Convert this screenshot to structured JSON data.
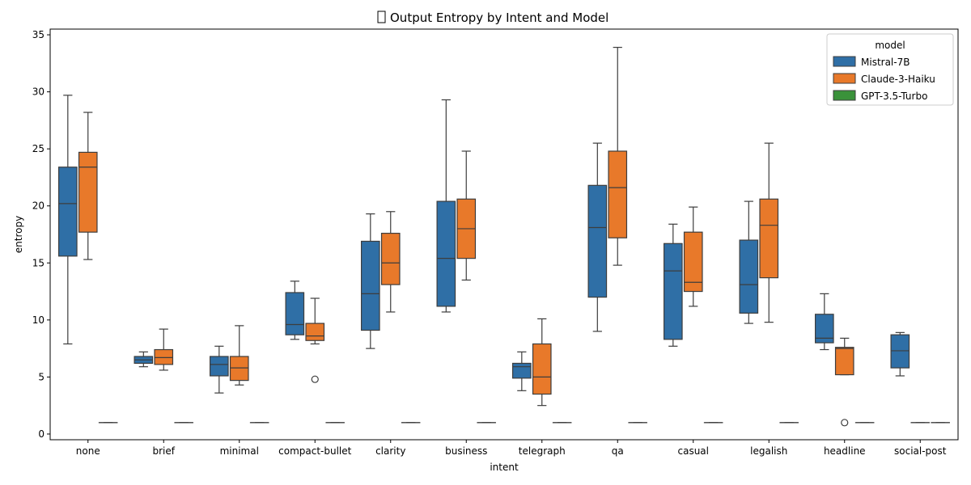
{
  "chart_data": {
    "type": "box",
    "title": "Output Entropy by Intent and Model",
    "title_icon": "tofu-glyph",
    "xlabel": "intent",
    "ylabel": "entropy",
    "ylim": [
      -0.5,
      35.5
    ],
    "yticks": [
      0,
      5,
      10,
      15,
      20,
      25,
      30,
      35
    ],
    "grid": false,
    "legend": {
      "title": "model",
      "placement": "top-right"
    },
    "categories": [
      "none",
      "brief",
      "minimal",
      "compact-bullet",
      "clarity",
      "business",
      "telegraph",
      "qa",
      "casual",
      "legalish",
      "headline",
      "social-post"
    ],
    "series": [
      {
        "name": "Mistral-7B",
        "color": "#2f6fa6",
        "boxes": [
          {
            "min": 7.9,
            "q1": 15.6,
            "median": 20.2,
            "q3": 23.4,
            "max": 29.7,
            "outliers": []
          },
          {
            "min": 5.9,
            "q1": 6.2,
            "median": 6.5,
            "q3": 6.8,
            "max": 7.2,
            "outliers": []
          },
          {
            "min": 3.6,
            "q1": 5.1,
            "median": 6.1,
            "q3": 6.8,
            "max": 7.7,
            "outliers": []
          },
          {
            "min": 8.3,
            "q1": 8.7,
            "median": 9.6,
            "q3": 12.4,
            "max": 13.4,
            "outliers": []
          },
          {
            "min": 7.5,
            "q1": 9.1,
            "median": 12.3,
            "q3": 16.9,
            "max": 19.3,
            "outliers": []
          },
          {
            "min": 10.7,
            "q1": 11.2,
            "median": 15.4,
            "q3": 20.4,
            "max": 29.3,
            "outliers": []
          },
          {
            "min": 3.8,
            "q1": 4.9,
            "median": 5.9,
            "q3": 6.2,
            "max": 7.2,
            "outliers": []
          },
          {
            "min": 9.0,
            "q1": 12.0,
            "median": 18.1,
            "q3": 21.8,
            "max": 25.5,
            "outliers": []
          },
          {
            "min": 7.7,
            "q1": 8.3,
            "median": 14.3,
            "q3": 16.7,
            "max": 18.4,
            "outliers": []
          },
          {
            "min": 9.7,
            "q1": 10.6,
            "median": 13.1,
            "q3": 17.0,
            "max": 20.4,
            "outliers": []
          },
          {
            "min": 7.4,
            "q1": 8.0,
            "median": 8.4,
            "q3": 10.5,
            "max": 12.3,
            "outliers": []
          },
          {
            "min": 5.1,
            "q1": 5.8,
            "median": 7.3,
            "q3": 8.7,
            "max": 8.9,
            "outliers": []
          }
        ]
      },
      {
        "name": "Claude-3-Haiku",
        "color": "#e8792a",
        "boxes": [
          {
            "min": 15.3,
            "q1": 17.7,
            "median": 23.4,
            "q3": 24.7,
            "max": 28.2,
            "outliers": []
          },
          {
            "min": 5.6,
            "q1": 6.1,
            "median": 6.7,
            "q3": 7.4,
            "max": 9.2,
            "outliers": []
          },
          {
            "min": 4.3,
            "q1": 4.7,
            "median": 5.8,
            "q3": 6.8,
            "max": 9.5,
            "outliers": []
          },
          {
            "min": 7.9,
            "q1": 8.2,
            "median": 8.6,
            "q3": 9.7,
            "max": 11.9,
            "outliers": [
              4.8
            ]
          },
          {
            "min": 10.7,
            "q1": 13.1,
            "median": 15.0,
            "q3": 17.6,
            "max": 19.5,
            "outliers": []
          },
          {
            "min": 13.5,
            "q1": 15.4,
            "median": 18.0,
            "q3": 20.6,
            "max": 24.8,
            "outliers": []
          },
          {
            "min": 2.5,
            "q1": 3.5,
            "median": 5.0,
            "q3": 7.9,
            "max": 10.1,
            "outliers": []
          },
          {
            "min": 14.8,
            "q1": 17.2,
            "median": 21.6,
            "q3": 24.8,
            "max": 33.9,
            "outliers": []
          },
          {
            "min": 11.2,
            "q1": 12.5,
            "median": 13.3,
            "q3": 17.7,
            "max": 19.9,
            "outliers": []
          },
          {
            "min": 9.8,
            "q1": 13.7,
            "median": 18.3,
            "q3": 20.6,
            "max": 25.5,
            "outliers": []
          },
          {
            "min": 5.2,
            "q1": 5.2,
            "median": 7.5,
            "q3": 7.6,
            "max": 8.4,
            "outliers": [
              1.0
            ]
          },
          {
            "min": 1.0,
            "q1": 1.0,
            "median": 1.0,
            "q3": 1.0,
            "max": 1.0,
            "outliers": []
          }
        ]
      },
      {
        "name": "GPT-3.5-Turbo",
        "color": "#3a923a",
        "boxes": [
          {
            "min": 1.0,
            "q1": 1.0,
            "median": 1.0,
            "q3": 1.0,
            "max": 1.0,
            "outliers": []
          },
          {
            "min": 1.0,
            "q1": 1.0,
            "median": 1.0,
            "q3": 1.0,
            "max": 1.0,
            "outliers": []
          },
          {
            "min": 1.0,
            "q1": 1.0,
            "median": 1.0,
            "q3": 1.0,
            "max": 1.0,
            "outliers": []
          },
          {
            "min": 1.0,
            "q1": 1.0,
            "median": 1.0,
            "q3": 1.0,
            "max": 1.0,
            "outliers": []
          },
          {
            "min": 1.0,
            "q1": 1.0,
            "median": 1.0,
            "q3": 1.0,
            "max": 1.0,
            "outliers": []
          },
          {
            "min": 1.0,
            "q1": 1.0,
            "median": 1.0,
            "q3": 1.0,
            "max": 1.0,
            "outliers": []
          },
          {
            "min": 1.0,
            "q1": 1.0,
            "median": 1.0,
            "q3": 1.0,
            "max": 1.0,
            "outliers": []
          },
          {
            "min": 1.0,
            "q1": 1.0,
            "median": 1.0,
            "q3": 1.0,
            "max": 1.0,
            "outliers": []
          },
          {
            "min": 1.0,
            "q1": 1.0,
            "median": 1.0,
            "q3": 1.0,
            "max": 1.0,
            "outliers": []
          },
          {
            "min": 1.0,
            "q1": 1.0,
            "median": 1.0,
            "q3": 1.0,
            "max": 1.0,
            "outliers": []
          },
          {
            "min": 1.0,
            "q1": 1.0,
            "median": 1.0,
            "q3": 1.0,
            "max": 1.0,
            "outliers": []
          },
          {
            "min": 1.0,
            "q1": 1.0,
            "median": 1.0,
            "q3": 1.0,
            "max": 1.0,
            "outliers": []
          }
        ]
      }
    ]
  }
}
